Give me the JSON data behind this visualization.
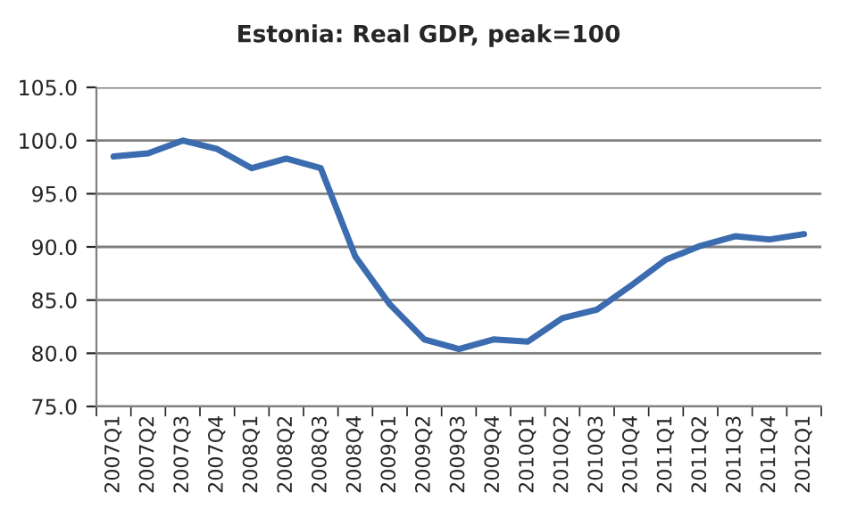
{
  "chart_data": {
    "type": "line",
    "title": "Estonia: Real GDP, peak=100",
    "categories": [
      "2007Q1",
      "2007Q2",
      "2007Q3",
      "2007Q4",
      "2008Q1",
      "2008Q2",
      "2008Q3",
      "2008Q4",
      "2009Q1",
      "2009Q2",
      "2009Q3",
      "2009Q4",
      "2010Q1",
      "2010Q2",
      "2010Q3",
      "2010Q4",
      "2011Q1",
      "2011Q2",
      "2011Q3",
      "2011Q4",
      "2012Q1"
    ],
    "series": [
      {
        "color": "#3b6cb0",
        "values": [
          98.5,
          98.8,
          100.0,
          99.2,
          97.4,
          98.3,
          97.4,
          89.1,
          84.6,
          81.3,
          80.4,
          81.3,
          81.1,
          83.3,
          84.1,
          86.4,
          88.8,
          90.1,
          91.0,
          90.7,
          91.2
        ]
      }
    ],
    "ylim": [
      75,
      105
    ],
    "yticks": [
      {
        "value": 75,
        "label": "75.0"
      },
      {
        "value": 80,
        "label": "80.0"
      },
      {
        "value": 85,
        "label": "85.0"
      },
      {
        "value": 90,
        "label": "90.0"
      },
      {
        "value": 95,
        "label": "95.0"
      },
      {
        "value": 100,
        "label": "100.0"
      },
      {
        "value": 105,
        "label": "105.0"
      }
    ],
    "grid": "y",
    "marker": "none",
    "line_style": "solid",
    "legend": false
  }
}
